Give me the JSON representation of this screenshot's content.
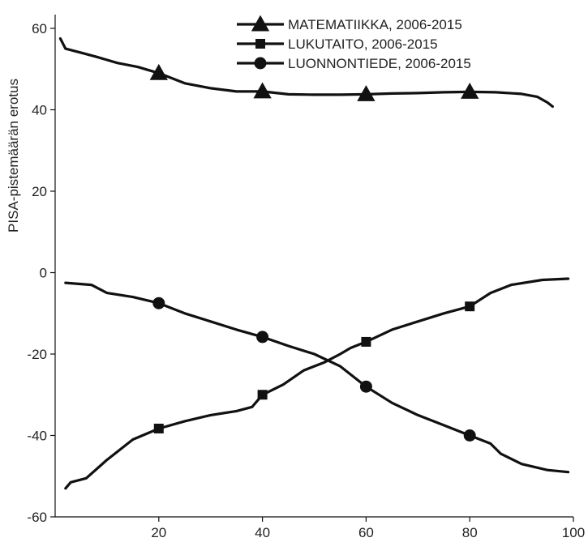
{
  "chart_data": {
    "type": "line",
    "title": "",
    "xlabel": "",
    "ylabel": "PISA-pistemäärän erotus",
    "xlim": [
      0,
      100
    ],
    "ylim": [
      -60,
      60
    ],
    "xticks": [
      20,
      40,
      60,
      80,
      100
    ],
    "yticks": [
      60,
      40,
      20,
      0,
      -20,
      -40,
      -60
    ],
    "grid": false,
    "legend_position": "top-center",
    "series": [
      {
        "name": "MATEMATIIKKA, 2006-2015",
        "marker": "triangle",
        "color": "#111111",
        "points": [
          [
            1,
            57.5
          ],
          [
            2,
            55
          ],
          [
            5,
            54
          ],
          [
            8,
            53
          ],
          [
            12,
            51.5
          ],
          [
            16,
            50.5
          ],
          [
            20,
            49
          ],
          [
            25,
            46.5
          ],
          [
            30,
            45.3
          ],
          [
            35,
            44.5
          ],
          [
            40,
            44.5
          ],
          [
            45,
            43.8
          ],
          [
            50,
            43.7
          ],
          [
            55,
            43.7
          ],
          [
            60,
            43.8
          ],
          [
            65,
            44
          ],
          [
            70,
            44.1
          ],
          [
            75,
            44.3
          ],
          [
            80,
            44.4
          ],
          [
            85,
            44.3
          ],
          [
            90,
            43.9
          ],
          [
            93,
            43.2
          ],
          [
            95,
            41.8
          ],
          [
            96,
            40.8
          ]
        ],
        "marker_x": [
          20,
          40,
          60,
          80
        ]
      },
      {
        "name": "LUKUTAITO, 2006-2015",
        "marker": "square",
        "color": "#111111",
        "points": [
          [
            2,
            -53
          ],
          [
            3,
            -51.5
          ],
          [
            6,
            -50.5
          ],
          [
            10,
            -46
          ],
          [
            15,
            -41
          ],
          [
            20,
            -38.3
          ],
          [
            25,
            -36.5
          ],
          [
            30,
            -35
          ],
          [
            35,
            -34
          ],
          [
            38,
            -33
          ],
          [
            40,
            -30
          ],
          [
            44,
            -27.5
          ],
          [
            48,
            -24
          ],
          [
            52,
            -22
          ],
          [
            55,
            -20
          ],
          [
            57,
            -18.5
          ],
          [
            60,
            -17
          ],
          [
            65,
            -14
          ],
          [
            70,
            -12
          ],
          [
            75,
            -10
          ],
          [
            80,
            -8.3
          ],
          [
            84,
            -5
          ],
          [
            88,
            -3
          ],
          [
            94,
            -1.8
          ],
          [
            99,
            -1.5
          ]
        ],
        "marker_x": [
          20,
          40,
          60,
          80
        ]
      },
      {
        "name": "LUONNONTIEDE, 2006-2015",
        "marker": "circle",
        "color": "#111111",
        "points": [
          [
            2,
            -2.5
          ],
          [
            7,
            -3
          ],
          [
            10,
            -5
          ],
          [
            15,
            -6
          ],
          [
            20,
            -7.5
          ],
          [
            25,
            -10
          ],
          [
            30,
            -12
          ],
          [
            35,
            -14
          ],
          [
            40,
            -15.8
          ],
          [
            45,
            -18
          ],
          [
            50,
            -20
          ],
          [
            55,
            -23
          ],
          [
            60,
            -28
          ],
          [
            65,
            -32
          ],
          [
            70,
            -35
          ],
          [
            75,
            -37.5
          ],
          [
            80,
            -40
          ],
          [
            84,
            -42
          ],
          [
            86,
            -44.5
          ],
          [
            90,
            -47
          ],
          [
            95,
            -48.5
          ],
          [
            99,
            -49
          ]
        ],
        "marker_x": [
          20,
          40,
          60,
          80
        ]
      }
    ]
  }
}
